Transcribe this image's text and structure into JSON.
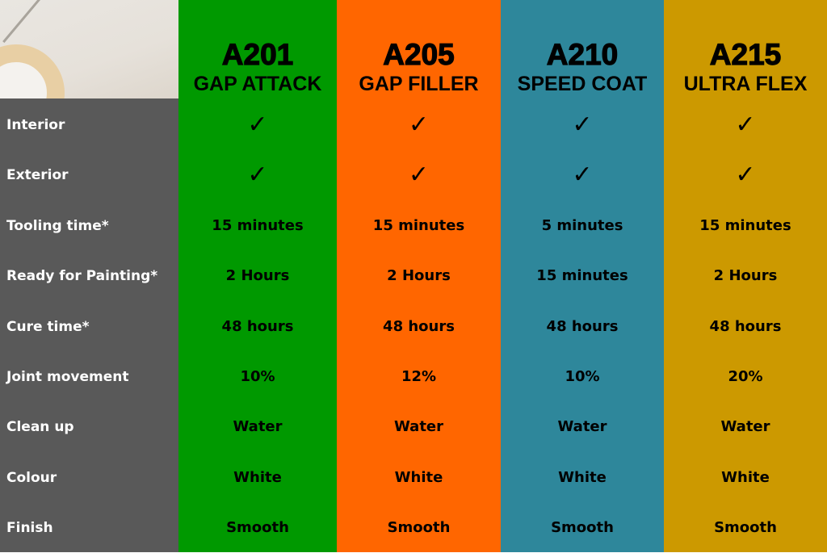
{
  "rows": [
    "Interior",
    "Exterior",
    "Tooling time*",
    "Ready for Painting*",
    "Cure time*",
    "Joint movement",
    "Clean up",
    "Colour",
    "Finish"
  ],
  "products": [
    {
      "code": "A201",
      "name": "GAP ATTACK",
      "color": "#009900",
      "values": [
        "✓",
        "✓",
        "15 minutes",
        "2 Hours",
        "48 hours",
        "10%",
        "Water",
        "White",
        "Smooth"
      ]
    },
    {
      "code": "A205",
      "name": "GAP FILLER",
      "color": "#ff6600",
      "values": [
        "✓",
        "✓",
        "15 minutes",
        "2 Hours",
        "48 hours",
        "12%",
        "Water",
        "White",
        "Smooth"
      ]
    },
    {
      "code": "A210",
      "name": "SPEED COAT",
      "color": "#2e879b",
      "values": [
        "✓",
        "✓",
        "5 minutes",
        "15 minutes",
        "48 hours",
        "10%",
        "Water",
        "White",
        "Smooth"
      ]
    },
    {
      "code": "A215",
      "name": "ULTRA FLEX",
      "color": "#cc9900",
      "values": [
        "✓",
        "✓",
        "15 minutes",
        "2 Hours",
        "48 hours",
        "20%",
        "Water",
        "White",
        "Smooth"
      ]
    }
  ]
}
